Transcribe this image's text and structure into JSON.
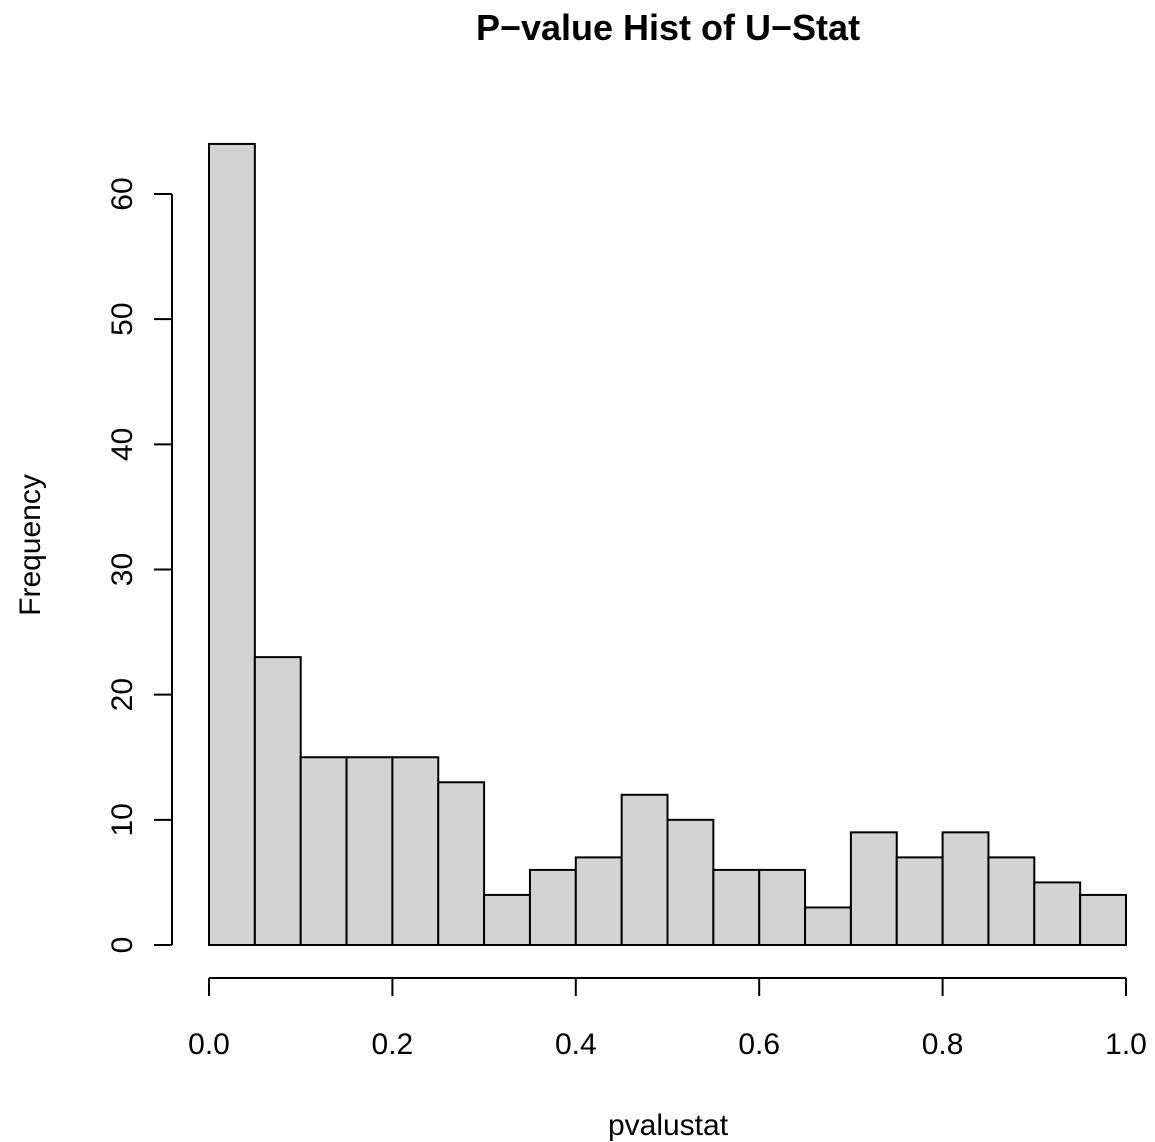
{
  "chart_data": {
    "type": "bar",
    "title": "P−value Hist of U−Stat",
    "xlabel": "pvalustat",
    "ylabel": "Frequency",
    "bin_edges": [
      0.0,
      0.05,
      0.1,
      0.15,
      0.2,
      0.25,
      0.3,
      0.35,
      0.4,
      0.45,
      0.5,
      0.55,
      0.6,
      0.65,
      0.7,
      0.75,
      0.8,
      0.85,
      0.9,
      0.95,
      1.0
    ],
    "values": [
      64,
      23,
      15,
      15,
      15,
      13,
      4,
      6,
      7,
      12,
      10,
      6,
      6,
      3,
      9,
      7,
      9,
      7,
      5,
      4
    ],
    "xlim": [
      0.0,
      1.0
    ],
    "ylim": [
      0,
      64
    ],
    "x_ticks": [
      "0.0",
      "0.2",
      "0.4",
      "0.6",
      "0.8",
      "1.0"
    ],
    "y_ticks": [
      "0",
      "10",
      "20",
      "30",
      "40",
      "50",
      "60"
    ],
    "bar_color": "#d3d3d3",
    "edge_color": "#000000",
    "grid": false,
    "legend": "none"
  }
}
